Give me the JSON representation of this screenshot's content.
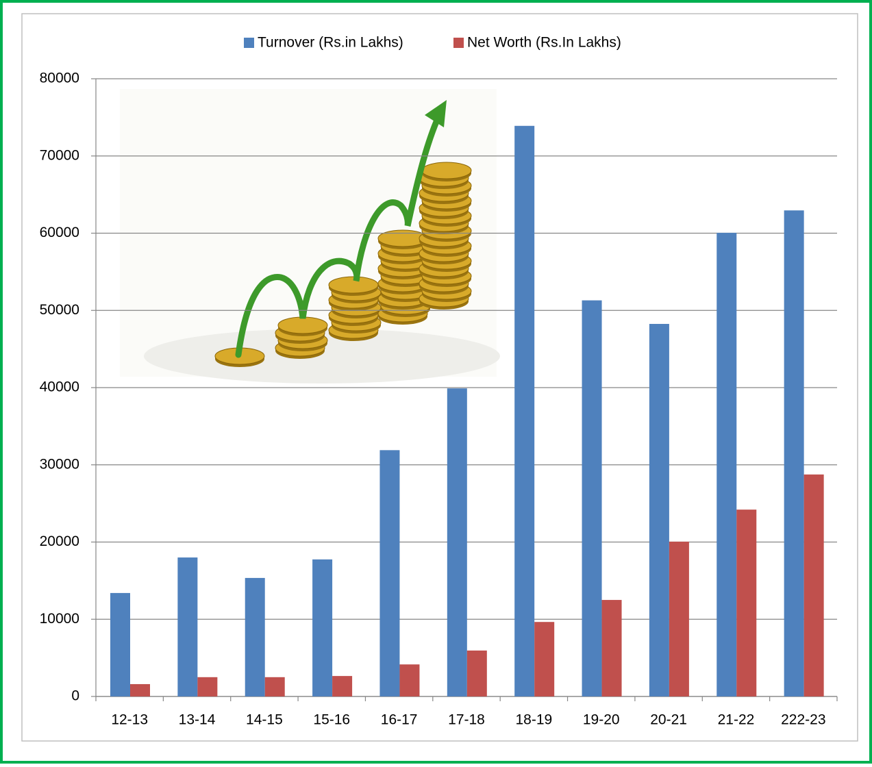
{
  "chart_data": {
    "type": "bar",
    "categories": [
      "12-13",
      "13-14",
      "14-15",
      "15-16",
      "16-17",
      "17-18",
      "18-19",
      "19-20",
      "20-21",
      "21-22",
      "222-23"
    ],
    "series": [
      {
        "name": "Turnover (Rs.in Lakhs)",
        "color": "#4f81bd",
        "values": [
          13400,
          18000,
          15350,
          17750,
          31900,
          39900,
          73900,
          51300,
          48250,
          60050,
          62950
        ]
      },
      {
        "name": "Net Worth (Rs.In Lakhs)",
        "color": "#c0504d",
        "values": [
          1600,
          2500,
          2500,
          2650,
          4150,
          5950,
          9650,
          12500,
          20050,
          24200,
          28750
        ]
      }
    ],
    "ylim": [
      0,
      80000
    ],
    "yticks": [
      0,
      10000,
      20000,
      30000,
      40000,
      50000,
      60000,
      70000,
      80000
    ],
    "grid": true,
    "legend": "top"
  }
}
